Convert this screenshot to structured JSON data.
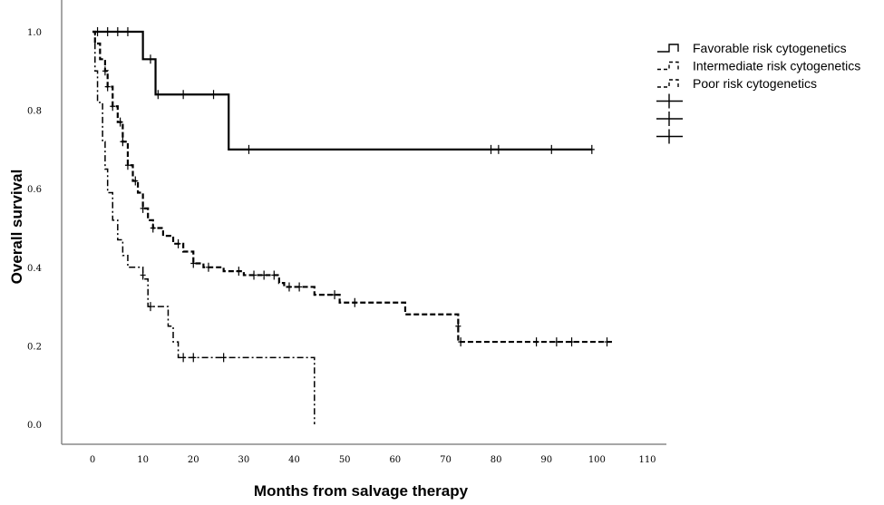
{
  "chart_data": {
    "type": "line",
    "subtype": "kaplan-meier step",
    "xlabel": "Months from salvage therapy",
    "ylabel": "Overall survival",
    "xlim": [
      0,
      110
    ],
    "ylim": [
      0,
      1
    ],
    "xticks": [
      "0",
      "10",
      "20",
      "30",
      "40",
      "50",
      "60",
      "70",
      "80",
      "90",
      "100",
      "110"
    ],
    "yticks": [
      "0.0",
      "0.2",
      "0.4",
      "0.6",
      "0.8",
      "1.0"
    ],
    "grid": false,
    "legend_position": "top-right",
    "legend": [
      "Favorable risk cytogenetics",
      "Intermediate risk cytogenetics",
      "Poor risk cytogenetics",
      "",
      "",
      ""
    ],
    "series": [
      {
        "name": "Favorable risk cytogenetics",
        "style": "solid",
        "steps": [
          [
            0,
            1.0
          ],
          [
            10,
            0.93
          ],
          [
            12.5,
            0.84
          ],
          [
            27,
            0.7
          ]
        ],
        "end": 99,
        "censored": [
          [
            1,
            1.0
          ],
          [
            3,
            1.0
          ],
          [
            5,
            1.0
          ],
          [
            7,
            1.0
          ],
          [
            11.5,
            0.93
          ],
          [
            13,
            0.84
          ],
          [
            18,
            0.84
          ],
          [
            24,
            0.84
          ],
          [
            31,
            0.7
          ],
          [
            79,
            0.7
          ],
          [
            80.5,
            0.7
          ],
          [
            91,
            0.7
          ],
          [
            99,
            0.7
          ]
        ]
      },
      {
        "name": "Intermediate risk cytogenetics",
        "style": "dashed",
        "steps": [
          [
            0,
            1.0
          ],
          [
            0.5,
            0.97
          ],
          [
            1.5,
            0.93
          ],
          [
            2.5,
            0.9
          ],
          [
            3,
            0.86
          ],
          [
            4,
            0.81
          ],
          [
            5,
            0.77
          ],
          [
            6,
            0.72
          ],
          [
            7,
            0.66
          ],
          [
            8,
            0.62
          ],
          [
            9,
            0.59
          ],
          [
            10,
            0.55
          ],
          [
            11,
            0.52
          ],
          [
            12,
            0.5
          ],
          [
            14,
            0.48
          ],
          [
            16,
            0.46
          ],
          [
            18,
            0.44
          ],
          [
            20,
            0.41
          ],
          [
            22,
            0.4
          ],
          [
            26,
            0.39
          ],
          [
            30,
            0.38
          ],
          [
            37,
            0.36
          ],
          [
            38,
            0.35
          ],
          [
            44,
            0.33
          ],
          [
            49,
            0.31
          ],
          [
            62,
            0.28
          ],
          [
            72.5,
            0.21
          ]
        ],
        "end": 103,
        "censored": [
          [
            2.5,
            0.9
          ],
          [
            3,
            0.86
          ],
          [
            4,
            0.81
          ],
          [
            5.5,
            0.77
          ],
          [
            6,
            0.72
          ],
          [
            7,
            0.66
          ],
          [
            8.5,
            0.62
          ],
          [
            10,
            0.55
          ],
          [
            12,
            0.5
          ],
          [
            17,
            0.46
          ],
          [
            20,
            0.41
          ],
          [
            23,
            0.4
          ],
          [
            29,
            0.39
          ],
          [
            32,
            0.38
          ],
          [
            34,
            0.38
          ],
          [
            36,
            0.38
          ],
          [
            39,
            0.35
          ],
          [
            41,
            0.35
          ],
          [
            48,
            0.33
          ],
          [
            52,
            0.31
          ],
          [
            72.5,
            0.25
          ],
          [
            73,
            0.21
          ],
          [
            88,
            0.21
          ],
          [
            92,
            0.21
          ],
          [
            95,
            0.21
          ],
          [
            102,
            0.21
          ]
        ]
      },
      {
        "name": "Poor risk cytogenetics",
        "style": "dash-dot",
        "steps": [
          [
            0,
            1.0
          ],
          [
            0.5,
            0.9
          ],
          [
            1,
            0.82
          ],
          [
            2,
            0.72
          ],
          [
            2.5,
            0.65
          ],
          [
            3,
            0.59
          ],
          [
            4,
            0.52
          ],
          [
            5,
            0.47
          ],
          [
            6,
            0.43
          ],
          [
            7,
            0.4
          ],
          [
            10,
            0.37
          ],
          [
            11,
            0.3
          ],
          [
            15,
            0.25
          ],
          [
            16,
            0.21
          ],
          [
            17,
            0.17
          ],
          [
            44,
            0.0
          ]
        ],
        "end": 44,
        "censored": [
          [
            10,
            0.38
          ],
          [
            11.5,
            0.3
          ],
          [
            18,
            0.17
          ],
          [
            20,
            0.17
          ],
          [
            26,
            0.17
          ]
        ]
      }
    ]
  }
}
